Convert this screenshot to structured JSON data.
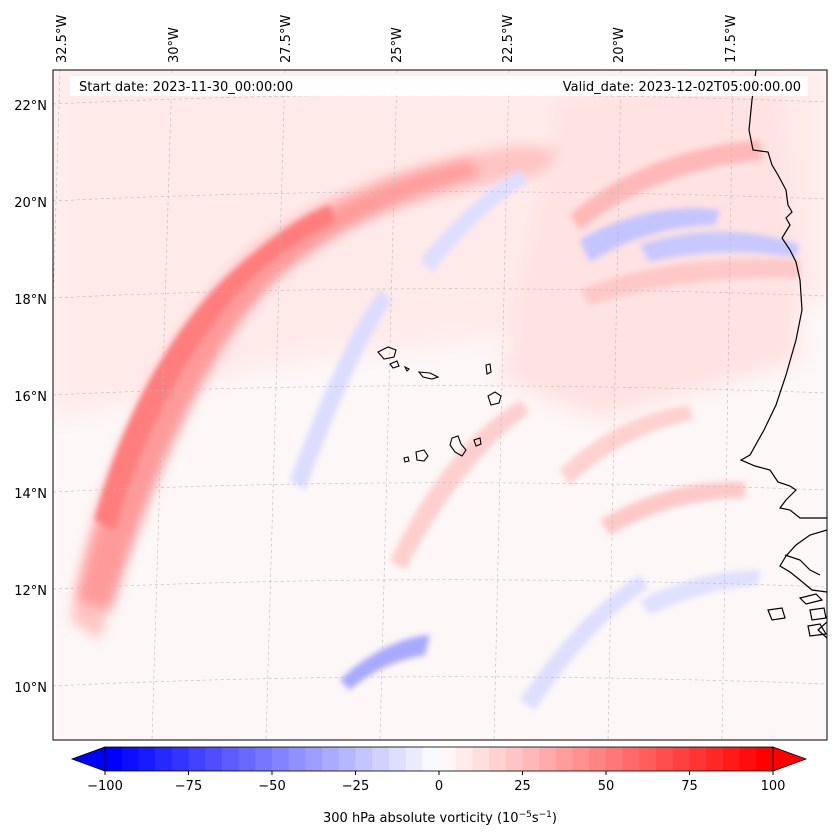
{
  "map": {
    "start_label": "Start date: 2023-11-30_00:00:00",
    "valid_label": "Valid_date: 2023-12-02T05:00:00.00",
    "lon_labels": [
      "32.5°W",
      "30°W",
      "27.5°W",
      "25°W",
      "22.5°W",
      "20°W",
      "17.5°W"
    ],
    "lat_labels": [
      "22°N",
      "20°N",
      "18°N",
      "16°N",
      "14°N",
      "12°N",
      "10°N"
    ],
    "colorbar": {
      "ticks": [
        "−100",
        "−75",
        "−50",
        "−25",
        "0",
        "25",
        "50",
        "75",
        "100"
      ],
      "min": -100,
      "max": 100,
      "label_prefix": "300 hPa absolute vorticity (10",
      "label_exp1": "−5",
      "label_mid": "s",
      "label_exp2": "−1",
      "label_suffix": ")"
    },
    "colors": {
      "positive": "#ff0000",
      "negative": "#0000ff",
      "coast": "#000000"
    }
  }
}
